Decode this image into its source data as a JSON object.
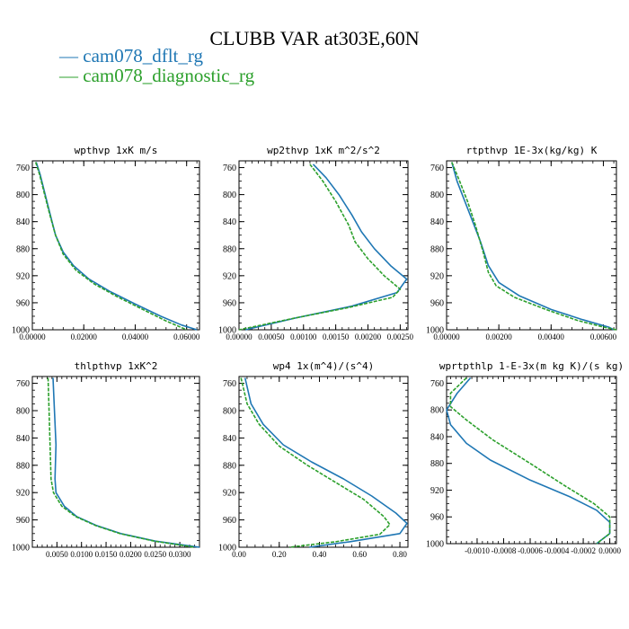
{
  "title": "CLUBB VAR at303E,60N",
  "legend": [
    {
      "label": "— cam078_dflt_rg",
      "color": "#1f77b4"
    },
    {
      "label": "— cam078_diagnostic_rg",
      "color": "#2ca02c"
    }
  ],
  "chart_data": [
    {
      "type": "line",
      "title": "wpthvp   1xK m/s",
      "y_axis": "pressure (inverted)",
      "ylim": [
        1000,
        750
      ],
      "yticks": [
        760,
        800,
        840,
        880,
        920,
        960,
        1000
      ],
      "xlim": [
        0.0,
        0.065
      ],
      "xticks": [
        0.0,
        0.02,
        0.04,
        0.06
      ],
      "xtick_labels": [
        "0.00000",
        "0.02000",
        "0.04000",
        "0.06000"
      ],
      "series": [
        {
          "name": "cam078_dflt_rg",
          "color": "#1f77b4",
          "dashed": false,
          "points": [
            [
              0.0015,
              752
            ],
            [
              0.003,
              770
            ],
            [
              0.005,
              800
            ],
            [
              0.007,
              830
            ],
            [
              0.009,
              860
            ],
            [
              0.012,
              885
            ],
            [
              0.016,
              905
            ],
            [
              0.022,
              925
            ],
            [
              0.03,
              943
            ],
            [
              0.04,
              962
            ],
            [
              0.05,
              980
            ],
            [
              0.058,
              993
            ],
            [
              0.064,
              1000
            ]
          ]
        },
        {
          "name": "cam078_diagnostic_rg",
          "color": "#2ca02c",
          "dashed": true,
          "points": [
            [
              0.0013,
              752
            ],
            [
              0.0028,
              770
            ],
            [
              0.0048,
              800
            ],
            [
              0.0068,
              830
            ],
            [
              0.009,
              860
            ],
            [
              0.012,
              888
            ],
            [
              0.017,
              912
            ],
            [
              0.024,
              932
            ],
            [
              0.033,
              951
            ],
            [
              0.043,
              970
            ],
            [
              0.052,
              987
            ],
            [
              0.06,
              1000
            ]
          ]
        }
      ]
    },
    {
      "type": "line",
      "title": "wp2thvp   1xK m^2/s^2",
      "ylim": [
        1000,
        750
      ],
      "yticks": [
        760,
        800,
        840,
        880,
        920,
        960,
        1000
      ],
      "xlim": [
        0.0,
        0.00262
      ],
      "xticks": [
        0.0,
        0.0005,
        0.001,
        0.0015,
        0.002,
        0.0025
      ],
      "xtick_labels": [
        "0.00000",
        "0.00050",
        "0.00100",
        "0.00150",
        "0.00200",
        "0.00250"
      ],
      "series": [
        {
          "name": "cam078_dflt_rg",
          "color": "#1f77b4",
          "dashed": false,
          "points": [
            [
              0.00115,
              755
            ],
            [
              0.00135,
              775
            ],
            [
              0.00155,
              800
            ],
            [
              0.00175,
              830
            ],
            [
              0.0019,
              855
            ],
            [
              0.0021,
              880
            ],
            [
              0.00235,
              905
            ],
            [
              0.0026,
              925
            ],
            [
              0.00245,
              945
            ],
            [
              0.00175,
              965
            ],
            [
              0.0009,
              982
            ],
            [
              0.0001,
              1000
            ]
          ]
        },
        {
          "name": "cam078_diagnostic_rg",
          "color": "#2ca02c",
          "dashed": true,
          "points": [
            [
              0.0011,
              755
            ],
            [
              0.0013,
              780
            ],
            [
              0.0015,
              810
            ],
            [
              0.0017,
              845
            ],
            [
              0.0018,
              870
            ],
            [
              0.002,
              895
            ],
            [
              0.00225,
              920
            ],
            [
              0.0025,
              940
            ],
            [
              0.00238,
              952
            ],
            [
              0.0017,
              967
            ],
            [
              0.00085,
              983
            ],
            [
              0.0,
              1000
            ]
          ]
        }
      ]
    },
    {
      "type": "line",
      "title": "rtpthvp   1E-3x(kg/kg) K",
      "ylim": [
        1000,
        750
      ],
      "yticks": [
        760,
        800,
        840,
        880,
        920,
        960,
        1000
      ],
      "xlim": [
        0.0,
        0.0065
      ],
      "xticks": [
        0.0,
        0.002,
        0.004,
        0.006
      ],
      "xtick_labels": [
        "0.00000",
        "0.00200",
        "0.00400",
        "0.00600"
      ],
      "series": [
        {
          "name": "cam078_dflt_rg",
          "color": "#1f77b4",
          "dashed": false,
          "points": [
            [
              0.0002,
              752
            ],
            [
              0.0004,
              780
            ],
            [
              0.0006,
              800
            ],
            [
              0.0009,
              830
            ],
            [
              0.0013,
              870
            ],
            [
              0.0016,
              905
            ],
            [
              0.002,
              930
            ],
            [
              0.0028,
              950
            ],
            [
              0.004,
              970
            ],
            [
              0.0052,
              985
            ],
            [
              0.0062,
              996
            ],
            [
              0.0064,
              1000
            ]
          ]
        },
        {
          "name": "cam078_diagnostic_rg",
          "color": "#2ca02c",
          "dashed": true,
          "points": [
            [
              0.0002,
              752
            ],
            [
              0.0005,
              780
            ],
            [
              0.0008,
              810
            ],
            [
              0.0011,
              845
            ],
            [
              0.0014,
              885
            ],
            [
              0.0016,
              915
            ],
            [
              0.0019,
              935
            ],
            [
              0.0026,
              952
            ],
            [
              0.0038,
              970
            ],
            [
              0.005,
              986
            ],
            [
              0.006,
              996
            ],
            [
              0.0065,
              1000
            ]
          ]
        }
      ]
    },
    {
      "type": "line",
      "title": "thlpthvp   1xK^2",
      "ylim": [
        1000,
        750
      ],
      "yticks": [
        760,
        800,
        840,
        880,
        920,
        960,
        1000
      ],
      "xlim": [
        0.0,
        0.034
      ],
      "xticks": [
        0.005,
        0.01,
        0.015,
        0.02,
        0.025,
        0.03
      ],
      "xtick_labels": [
        "0.0050",
        "0.0100",
        "0.0150",
        "0.0200",
        "0.0250",
        "0.0300"
      ],
      "series": [
        {
          "name": "cam078_dflt_rg",
          "color": "#1f77b4",
          "dashed": false,
          "points": [
            [
              0.0042,
              752
            ],
            [
              0.0045,
              800
            ],
            [
              0.0048,
              850
            ],
            [
              0.0046,
              900
            ],
            [
              0.0048,
              920
            ],
            [
              0.0065,
              940
            ],
            [
              0.009,
              955
            ],
            [
              0.013,
              968
            ],
            [
              0.018,
              980
            ],
            [
              0.025,
              991
            ],
            [
              0.034,
              1000
            ]
          ]
        },
        {
          "name": "cam078_diagnostic_rg",
          "color": "#2ca02c",
          "dashed": true,
          "points": [
            [
              0.0032,
              752
            ],
            [
              0.0034,
              800
            ],
            [
              0.0036,
              850
            ],
            [
              0.0038,
              900
            ],
            [
              0.0043,
              920
            ],
            [
              0.006,
              940
            ],
            [
              0.0088,
              955
            ],
            [
              0.0128,
              968
            ],
            [
              0.0178,
              980
            ],
            [
              0.0248,
              991
            ],
            [
              0.033,
              1000
            ]
          ]
        }
      ]
    },
    {
      "type": "line",
      "title": "wp4   1x(m^4)/(s^4)",
      "ylim": [
        1000,
        750
      ],
      "yticks": [
        760,
        800,
        840,
        880,
        920,
        960,
        1000
      ],
      "xlim": [
        0.0,
        0.84
      ],
      "xticks": [
        0.0,
        0.2,
        0.4,
        0.6,
        0.8
      ],
      "xtick_labels": [
        "0.00",
        "0.20",
        "0.40",
        "0.60",
        "0.80"
      ],
      "series": [
        {
          "name": "cam078_dflt_rg",
          "color": "#1f77b4",
          "dashed": false,
          "points": [
            [
              0.03,
              752
            ],
            [
              0.06,
              790
            ],
            [
              0.12,
              820
            ],
            [
              0.22,
              850
            ],
            [
              0.36,
              875
            ],
            [
              0.52,
              900
            ],
            [
              0.66,
              925
            ],
            [
              0.78,
              950
            ],
            [
              0.835,
              965
            ],
            [
              0.8,
              980
            ],
            [
              0.55,
              992
            ],
            [
              0.35,
              1000
            ]
          ]
        },
        {
          "name": "cam078_diagnostic_rg",
          "color": "#2ca02c",
          "dashed": true,
          "points": [
            [
              0.01,
              752
            ],
            [
              0.04,
              790
            ],
            [
              0.1,
              820
            ],
            [
              0.2,
              852
            ],
            [
              0.34,
              880
            ],
            [
              0.48,
              905
            ],
            [
              0.62,
              930
            ],
            [
              0.72,
              955
            ],
            [
              0.75,
              967
            ],
            [
              0.7,
              981
            ],
            [
              0.48,
              992
            ],
            [
              0.25,
              1000
            ]
          ]
        }
      ]
    },
    {
      "type": "line",
      "title": "wprtpthlp   1-E-3x(m kg K)/(s kg)",
      "ylim": [
        1000,
        750
      ],
      "yticks": [
        760,
        800,
        840,
        880,
        920,
        960,
        1000
      ],
      "xlim": [
        -0.00123,
        5e-05
      ],
      "xticks": [
        -0.001,
        -0.0008,
        -0.0006,
        -0.0004,
        -0.0002,
        0.0
      ],
      "xtick_labels": [
        "-0.0010",
        "-0.0008",
        "-0.0006",
        "-0.0004",
        "-0.0002",
        "0.0000"
      ],
      "series": [
        {
          "name": "cam078_dflt_rg",
          "color": "#1f77b4",
          "dashed": false,
          "points": [
            [
              -0.00105,
              752
            ],
            [
              -0.00115,
              775
            ],
            [
              -0.00123,
              800
            ],
            [
              -0.0012,
              822
            ],
            [
              -0.00108,
              850
            ],
            [
              -0.0009,
              875
            ],
            [
              -0.0006,
              905
            ],
            [
              -0.0003,
              930
            ],
            [
              -0.0001,
              950
            ],
            [
              0.0,
              968
            ],
            [
              0.0,
              985
            ],
            [
              -0.0001,
              1000
            ]
          ]
        },
        {
          "name": "cam078_diagnostic_rg",
          "color": "#2ca02c",
          "dashed": true,
          "points": [
            [
              -0.00108,
              752
            ],
            [
              -0.0012,
              775
            ],
            [
              -0.0012,
              795
            ],
            [
              -0.00108,
              815
            ],
            [
              -0.00088,
              845
            ],
            [
              -0.0006,
              880
            ],
            [
              -0.00035,
              912
            ],
            [
              -0.00012,
              940
            ],
            [
              0.0,
              960
            ],
            [
              0.0,
              985
            ],
            [
              -0.0001,
              1000
            ]
          ]
        }
      ]
    }
  ]
}
